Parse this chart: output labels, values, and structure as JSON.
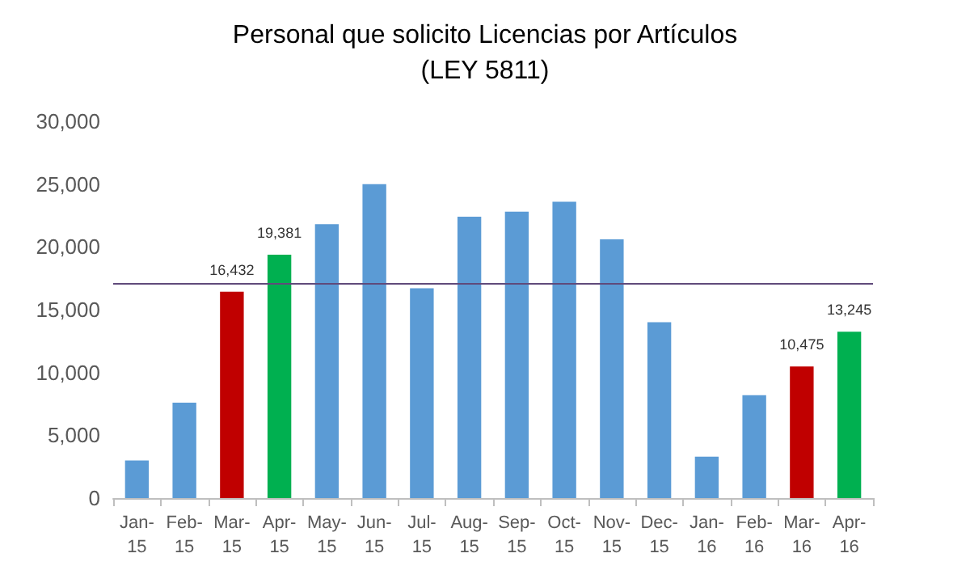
{
  "chart_data": {
    "type": "bar",
    "title": "Personal que solicito Licencias por Artículos\n(LEY 5811)",
    "categories": [
      "Jan-15",
      "Feb-15",
      "Mar-15",
      "Apr-15",
      "May-15",
      "Jun-15",
      "Jul-15",
      "Aug-15",
      "Sep-15",
      "Oct-15",
      "Nov-15",
      "Dec-15",
      "Jan-16",
      "Feb-16",
      "Mar-16",
      "Apr-16"
    ],
    "values": [
      3000,
      7600,
      16432,
      19381,
      21800,
      25000,
      16700,
      22400,
      22800,
      23600,
      20600,
      14000,
      3300,
      8200,
      10475,
      13245
    ],
    "colors": [
      "#5b9bd5",
      "#5b9bd5",
      "#c00000",
      "#00b050",
      "#5b9bd5",
      "#5b9bd5",
      "#5b9bd5",
      "#5b9bd5",
      "#5b9bd5",
      "#5b9bd5",
      "#5b9bd5",
      "#5b9bd5",
      "#5b9bd5",
      "#5b9bd5",
      "#c00000",
      "#00b050"
    ],
    "value_labels": [
      null,
      null,
      "16,432",
      "19,381",
      null,
      null,
      null,
      null,
      null,
      null,
      null,
      null,
      null,
      null,
      "10,475",
      "13,245"
    ],
    "ylim": [
      0,
      30000
    ],
    "yticks": [
      0,
      {
        "value": 5000,
        "label": "5,000"
      },
      {
        "value": 10000,
        "label": "10,000"
      },
      {
        "value": 15000,
        "label": "15,000"
      },
      {
        "value": 20000,
        "label": "20,000"
      },
      {
        "value": 25000,
        "label": "25,000"
      },
      {
        "value": 30000,
        "label": "30,000"
      }
    ],
    "ref_lines": [
      {
        "axis": "y",
        "value": 17100,
        "color": "#604a7b"
      }
    ],
    "grid": false
  }
}
